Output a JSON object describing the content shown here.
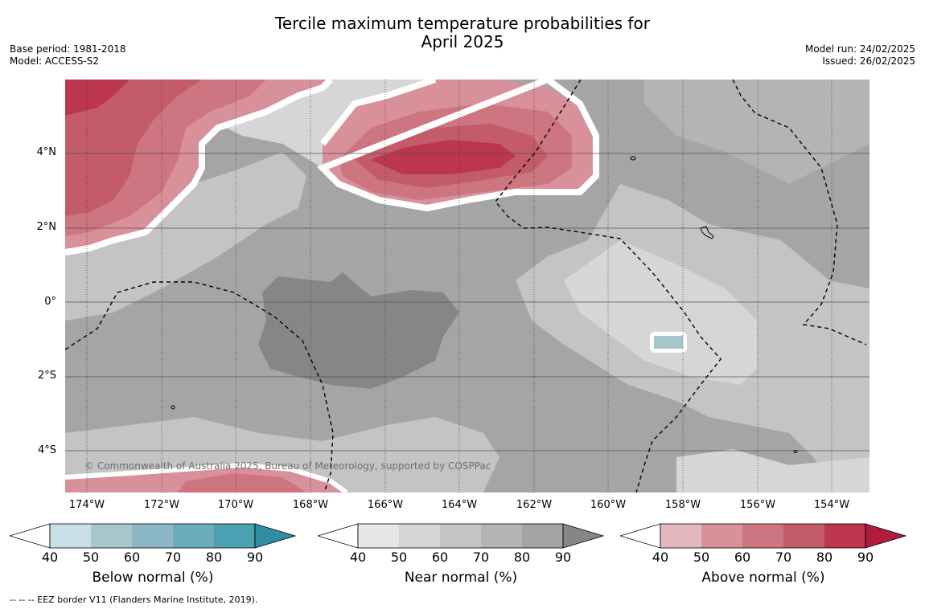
{
  "title": {
    "line1": "Tercile maximum temperature probabilities for",
    "line2": "April 2025"
  },
  "meta_left": {
    "base_period": "Base period: 1981-2018",
    "model": "Model: ACCESS-S2"
  },
  "meta_right": {
    "model_run": "Model run: 24/02/2025",
    "issued": "Issued: 26/02/2025"
  },
  "map": {
    "copyright": "© Commonwealth of Australia 2025, Bureau of Meteorology, supported by COSPPac",
    "latitude_labels": [
      "4°N",
      "2°N",
      "0°",
      "2°S",
      "4°S"
    ],
    "longitude_labels": [
      "174°W",
      "172°W",
      "170°W",
      "168°W",
      "166°W",
      "164°W",
      "162°W",
      "160°W",
      "158°W",
      "156°W",
      "154°W"
    ]
  },
  "colorbars": [
    {
      "title": "Below normal (%)",
      "ticks": [
        "40",
        "50",
        "60",
        "70",
        "80",
        "90"
      ],
      "colors": [
        "#c9e1e6",
        "#a7c6cb",
        "#8ab7c3",
        "#6cacbb",
        "#4ba1b1",
        "#2f8ea4"
      ]
    },
    {
      "title": "Near normal (%)",
      "ticks": [
        "40",
        "50",
        "60",
        "70",
        "80",
        "90"
      ],
      "colors": [
        "#e6e6e6",
        "#d6d6d6",
        "#c4c4c4",
        "#b4b4b4",
        "#a3a3a3",
        "#868686"
      ]
    },
    {
      "title": "Above normal (%)",
      "ticks": [
        "40",
        "50",
        "60",
        "70",
        "80",
        "90"
      ],
      "colors": [
        "#e3b8bc",
        "#d8909a",
        "#cd7580",
        "#c35b69",
        "#bc3650",
        "#b01c3c"
      ]
    }
  ],
  "footnote": "--  --  -- EEZ border V11 (Flanders Marine Institute, 2019)."
}
